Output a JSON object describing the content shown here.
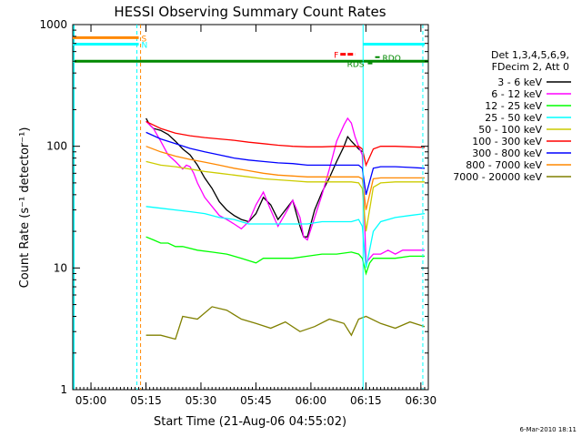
{
  "chart_data": {
    "type": "line",
    "title": "HESSI Observing Summary Count Rates",
    "xlabel": "Start Time (21-Aug-06 04:55:02)",
    "ylabel": "Count Rate (s⁻¹ detector⁻¹)",
    "x_unit": "minutes after 04:55:02",
    "x_ticks": [
      "05:00",
      "05:15",
      "05:30",
      "05:45",
      "06:00",
      "06:15",
      "06:30"
    ],
    "x_tick_values": [
      4.97,
      19.97,
      34.97,
      49.97,
      64.97,
      79.97,
      94.97
    ],
    "xlim": [
      0,
      97
    ],
    "y_scale": "log",
    "y_ticks": [
      "1",
      "10",
      "100",
      "1000"
    ],
    "y_tick_values": [
      1,
      10,
      100,
      1000
    ],
    "ylim": [
      1,
      1000
    ],
    "legend_title": [
      "Det 1,3,4,5,6,9,",
      "FDecim 2, Att 0"
    ],
    "legend_position": "right",
    "series": [
      {
        "name": "3 - 6 keV",
        "color": "#000000",
        "x": [
          20,
          21,
          22,
          24,
          26,
          28,
          30,
          32,
          34,
          36,
          38,
          40,
          42,
          44,
          46,
          48,
          50,
          52,
          54,
          56,
          58,
          60,
          61,
          62,
          63,
          64,
          66,
          68,
          70,
          72,
          74,
          75,
          76,
          78,
          79
        ],
        "y": [
          170,
          150,
          140,
          135,
          125,
          110,
          95,
          85,
          70,
          55,
          45,
          35,
          30,
          27,
          25,
          24,
          28,
          38,
          33,
          25,
          30,
          36,
          28,
          22,
          18,
          18,
          30,
          42,
          55,
          75,
          100,
          120,
          110,
          95,
          90
        ]
      },
      {
        "name": "6 - 12 keV",
        "color": "#ff00ff",
        "x": [
          20,
          22,
          24,
          26,
          28,
          30,
          31,
          32,
          33,
          34,
          36,
          38,
          40,
          42,
          44,
          46,
          48,
          50,
          52,
          54,
          56,
          58,
          60,
          62,
          63,
          64,
          66,
          68,
          70,
          72,
          74,
          75,
          76,
          77,
          78,
          79,
          80,
          81,
          82,
          84,
          86,
          88,
          90,
          92,
          94,
          96
        ],
        "y": [
          160,
          140,
          110,
          85,
          75,
          65,
          70,
          68,
          60,
          50,
          38,
          32,
          27,
          25,
          23,
          21,
          24,
          33,
          42,
          30,
          22,
          28,
          36,
          26,
          18,
          17,
          26,
          40,
          65,
          110,
          150,
          170,
          155,
          120,
          100,
          85,
          11,
          12,
          13,
          13,
          14,
          13,
          14,
          14,
          14,
          14
        ]
      },
      {
        "name": "12 - 25 keV",
        "color": "#00ff00",
        "x": [
          20,
          22,
          24,
          26,
          28,
          30,
          34,
          38,
          42,
          46,
          50,
          52,
          56,
          60,
          64,
          68,
          72,
          76,
          78,
          79,
          80,
          81,
          82,
          84,
          88,
          92,
          96
        ],
        "y": [
          18,
          17,
          16,
          16,
          15,
          15,
          14,
          13.5,
          13,
          12,
          11,
          12,
          12,
          12,
          12.5,
          13,
          13,
          13.5,
          13,
          12,
          9,
          11,
          12,
          12,
          12,
          12.5,
          12.5
        ]
      },
      {
        "name": "25 - 50 keV",
        "color": "#00ffff",
        "x": [
          20,
          24,
          28,
          32,
          36,
          40,
          44,
          48,
          52,
          56,
          60,
          64,
          68,
          72,
          76,
          78,
          79,
          80,
          82,
          84,
          88,
          92,
          96
        ],
        "y": [
          32,
          31,
          30,
          29,
          28,
          26,
          25,
          23,
          23,
          23,
          23,
          23,
          24,
          24,
          24,
          25,
          22,
          10,
          20,
          24,
          26,
          27,
          28
        ]
      },
      {
        "name": "50 - 100 keV",
        "color": "#cccc00",
        "x": [
          20,
          24,
          28,
          32,
          36,
          40,
          44,
          48,
          52,
          56,
          60,
          64,
          68,
          72,
          76,
          78,
          79,
          80,
          82,
          84,
          88,
          92,
          96
        ],
        "y": [
          75,
          70,
          68,
          65,
          62,
          60,
          58,
          56,
          54,
          53,
          52,
          51,
          51,
          51,
          51,
          50,
          45,
          20,
          46,
          50,
          51,
          51,
          51
        ]
      },
      {
        "name": "100 - 300 keV",
        "color": "#ff0000",
        "x": [
          20,
          24,
          28,
          32,
          36,
          40,
          44,
          48,
          52,
          56,
          60,
          64,
          68,
          72,
          76,
          78,
          79,
          80,
          82,
          84,
          88,
          92,
          96
        ],
        "y": [
          160,
          140,
          128,
          122,
          118,
          115,
          112,
          108,
          105,
          102,
          100,
          99,
          99,
          100,
          100,
          100,
          95,
          70,
          95,
          100,
          100,
          99,
          98
        ]
      },
      {
        "name": "300 - 800 keV",
        "color": "#0000ff",
        "x": [
          20,
          24,
          28,
          32,
          36,
          40,
          44,
          48,
          52,
          56,
          60,
          64,
          68,
          72,
          76,
          78,
          79,
          80,
          82,
          84,
          88,
          92,
          96
        ],
        "y": [
          130,
          115,
          105,
          96,
          90,
          85,
          80,
          77,
          75,
          73,
          72,
          70,
          70,
          70,
          70,
          70,
          66,
          40,
          66,
          68,
          68,
          67,
          66
        ]
      },
      {
        "name": "800 - 7000 keV",
        "color": "#ff8800",
        "x": [
          20,
          24,
          28,
          32,
          36,
          40,
          44,
          48,
          52,
          56,
          60,
          64,
          68,
          72,
          76,
          78,
          79,
          80,
          82,
          84,
          88,
          92,
          96
        ],
        "y": [
          100,
          90,
          83,
          78,
          74,
          70,
          66,
          63,
          60,
          58,
          57,
          56,
          56,
          56,
          56,
          56,
          54,
          30,
          54,
          55,
          55,
          55,
          55
        ]
      },
      {
        "name": "7000 - 20000 keV",
        "color": "#808000",
        "x": [
          20,
          24,
          28,
          30,
          34,
          38,
          42,
          46,
          50,
          54,
          58,
          62,
          66,
          70,
          74,
          76,
          78,
          80,
          84,
          88,
          92,
          96
        ],
        "y": [
          2.8,
          2.8,
          2.6,
          4,
          3.8,
          4.8,
          4.5,
          3.8,
          3.5,
          3.2,
          3.6,
          3,
          3.3,
          3.8,
          3.5,
          2.8,
          3.8,
          4,
          3.5,
          3.2,
          3.6,
          3.3
        ]
      }
    ],
    "flags": [
      {
        "label": "S",
        "color": "#ff8800",
        "x_start": 0,
        "x_end": 18,
        "y": 780
      },
      {
        "label": "N",
        "color": "#00ffff",
        "x_start": 0,
        "x_end": 18,
        "y": 690
      },
      {
        "label": "F",
        "color": "#ff0000",
        "x_start": 73,
        "x_end": 77,
        "y": 570
      },
      {
        "label": "RDO",
        "color": "#008800",
        "x_start": 82,
        "x_end": 82,
        "y": 540
      },
      {
        "label": "RDS",
        "color": "#008800",
        "x_start": 80,
        "x_end": 80,
        "y": 480
      }
    ],
    "flag_colors": {
      "saa_line": "#008800",
      "night_marker": "#00ffff",
      "saa_marker": "#ff8800"
    }
  },
  "footer": {
    "timestamp": "6-Mar-2010 18:11"
  }
}
